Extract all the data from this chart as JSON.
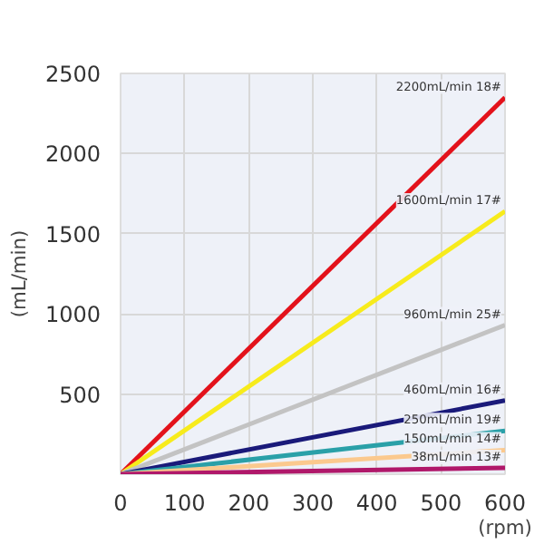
{
  "chart_data": {
    "type": "line",
    "xlabel": "(rpm)",
    "ylabel": "(mL/min)",
    "x": [
      0,
      600
    ],
    "series": [
      {
        "name": "2200mL/min 18#",
        "color": "#e3121b",
        "values": [
          0,
          2350
        ]
      },
      {
        "name": "1600mL/min 17#",
        "color": "#f7eb1c",
        "values": [
          0,
          1640
        ]
      },
      {
        "name": "960mL/min 25#",
        "color": "#c3c3c3",
        "values": [
          0,
          930
        ]
      },
      {
        "name": "460mL/min 16#",
        "color": "#1a1a7a",
        "values": [
          0,
          460
        ]
      },
      {
        "name": "250mL/min 19#",
        "color": "#2aa0a8",
        "values": [
          0,
          270
        ]
      },
      {
        "name": "150mL/min 14#",
        "color": "#fbc98e",
        "values": [
          0,
          150
        ]
      },
      {
        "name": "38mL/min 13#",
        "color": "#b0186a",
        "values": [
          0,
          40
        ]
      }
    ],
    "xlim": [
      0,
      600
    ],
    "ylim": [
      0,
      2500
    ],
    "xticks": [
      0,
      100,
      200,
      300,
      400,
      500,
      600
    ],
    "yticks": [
      {
        "value": 0,
        "label": null
      },
      500,
      1000,
      1500,
      2000,
      2500
    ],
    "grid": true,
    "marker": "none",
    "line_style": "solid"
  }
}
